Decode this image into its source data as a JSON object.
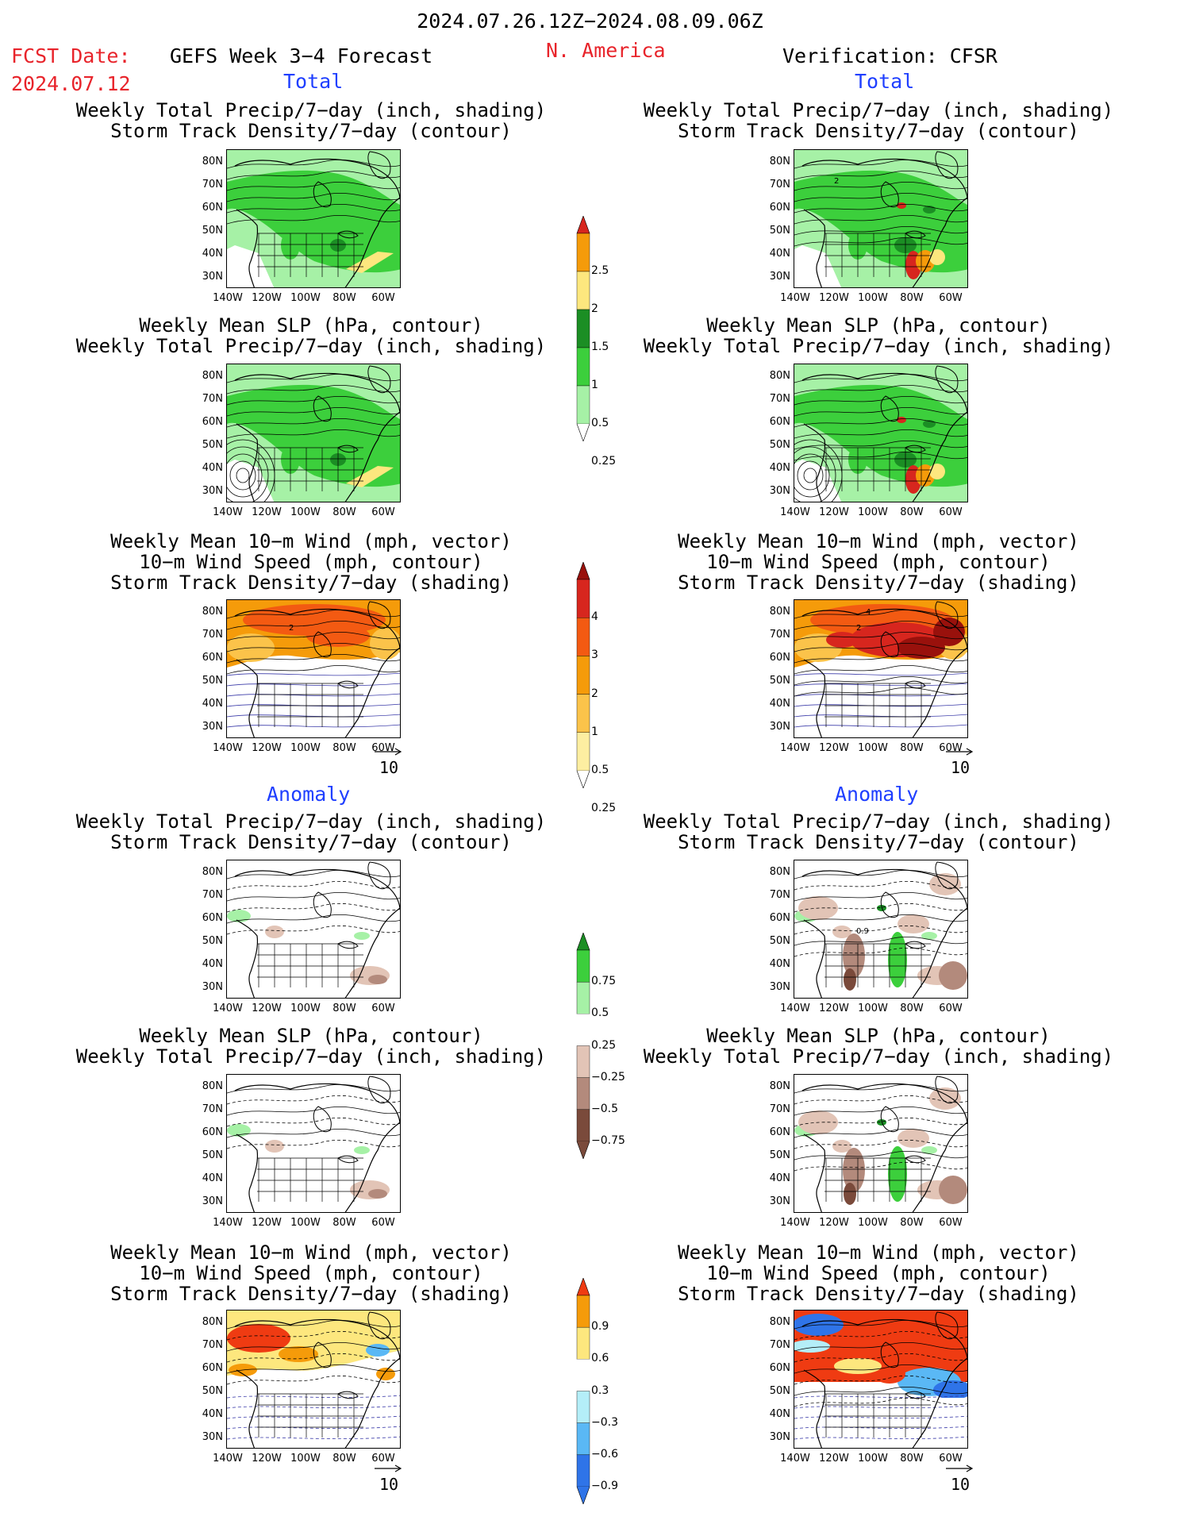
{
  "header": {
    "date_range": "2024.07.26.12Z−2024.08.09.06Z",
    "fcst_label": "FCST Date:",
    "fcst_date": "2024.07.12",
    "model": "GEFS Week 3−4 Forecast",
    "region": "N. America",
    "verification": "Verification: CFSR"
  },
  "sections": {
    "total": "Total",
    "anomaly": "Anomaly"
  },
  "titles": {
    "precip_storm": [
      "Weekly Total Precip/7−day (inch, shading)",
      "Storm Track Density/7−day (contour)"
    ],
    "slp_precip": [
      "Weekly Mean SLP (hPa, contour)",
      "Weekly Total Precip/7−day (inch, shading)"
    ],
    "wind_storm": [
      "Weekly Mean 10−m Wind (mph, vector)",
      "10−m Wind Speed (mph, contour)",
      "Storm Track Density/7−day (shading)"
    ]
  },
  "axes": {
    "lat_labels": [
      "80N",
      "70N",
      "60N",
      "50N",
      "40N",
      "30N"
    ],
    "lon_labels": [
      "140W",
      "120W",
      "100W",
      "80W",
      "60W"
    ],
    "vector_ref": "10"
  },
  "colorbars": {
    "precip_total": {
      "labels": [
        "2.5",
        "2",
        "1.5",
        "1",
        "0.5",
        "0.25"
      ],
      "colors": [
        "#d7261e",
        "#f59b0a",
        "#fde77e",
        "#1b8e24",
        "#3ccf3c",
        "#a6f1a6"
      ]
    },
    "storm_total": {
      "labels": [
        "4",
        "3",
        "2",
        "1",
        "0.5",
        "0.25"
      ],
      "colors": [
        "#99110c",
        "#d7261e",
        "#f35a12",
        "#f59b0a",
        "#fbc34a",
        "#fdeea1"
      ]
    },
    "precip_anom": {
      "labels": [
        "0.75",
        "0.5",
        "0.25",
        "−0.25",
        "−0.5",
        "−0.75"
      ],
      "colors": [
        "#1b8e24",
        "#3ccf3c",
        "#a6f1a6",
        "#ffffff",
        "#e2c4b6",
        "#b38a7c",
        "#7a4a3b"
      ]
    },
    "storm_anom": {
      "labels": [
        "0.9",
        "0.6",
        "0.3",
        "−0.3",
        "−0.6",
        "−0.9"
      ],
      "colors": [
        "#ef3b12",
        "#f59b0a",
        "#fde77e",
        "#ffffff",
        "#b4eef8",
        "#5ab8f5",
        "#2f74e8"
      ]
    }
  },
  "map_annotations": {
    "storm_contour_2": "2",
    "storm_contour_4": "4",
    "slp_label": "0.9"
  },
  "panels": [
    {
      "id": "fcst-total-precip",
      "type": "precip"
    },
    {
      "id": "verif-total-precip",
      "type": "precip-strong"
    },
    {
      "id": "fcst-total-slp",
      "type": "precip"
    },
    {
      "id": "verif-total-slp",
      "type": "precip-strong"
    },
    {
      "id": "fcst-total-wind",
      "type": "storm"
    },
    {
      "id": "verif-total-wind",
      "type": "storm-strong"
    },
    {
      "id": "fcst-anom-precip",
      "type": "anom-precip"
    },
    {
      "id": "verif-anom-precip",
      "type": "anom-precip-strong"
    },
    {
      "id": "fcst-anom-slp",
      "type": "anom-precip"
    },
    {
      "id": "verif-anom-slp",
      "type": "anom-precip-strong"
    },
    {
      "id": "fcst-anom-wind",
      "type": "anom-storm"
    },
    {
      "id": "verif-anom-wind",
      "type": "anom-storm-strong"
    }
  ]
}
